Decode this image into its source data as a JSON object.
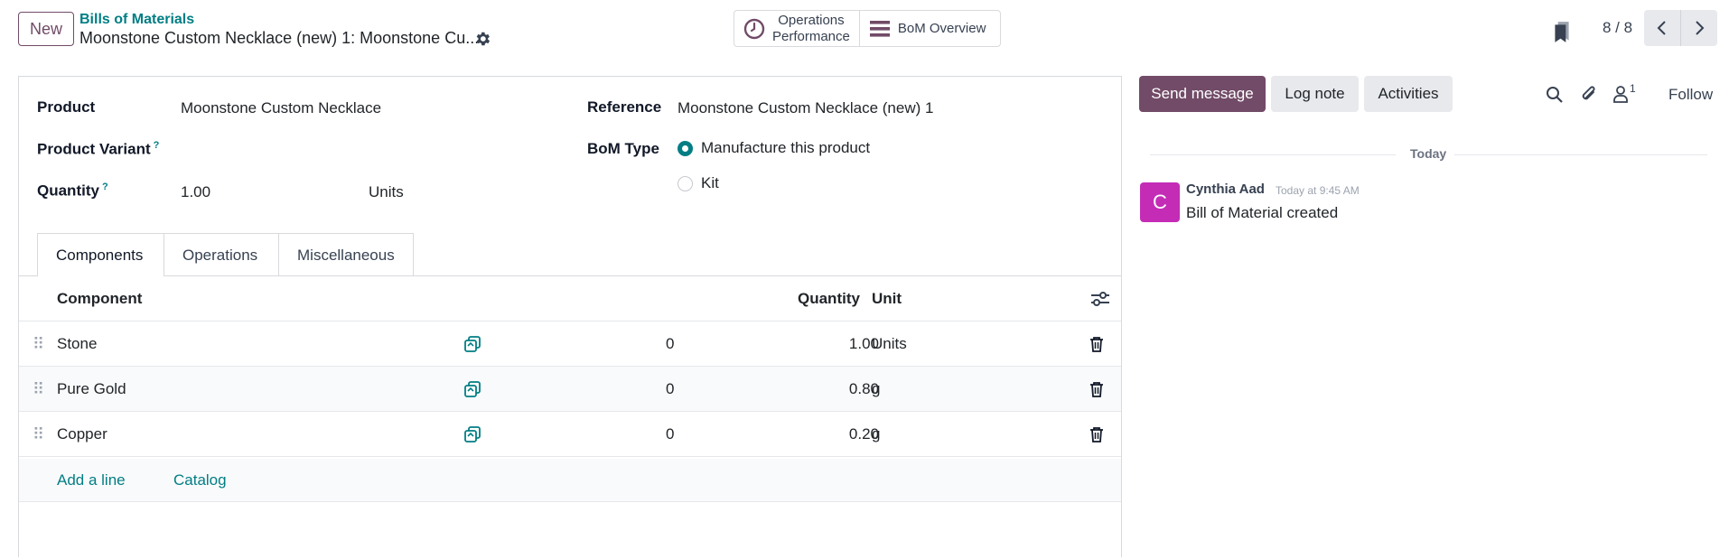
{
  "control_panel": {
    "new_label": "New",
    "breadcrumb_parent": "Bills of Materials",
    "breadcrumb_current": "Moonstone Custom Necklace (new) 1: Moonstone Cu...",
    "stat_operations_line1": "Operations",
    "stat_operations_line2": "Performance",
    "stat_bom_overview": "BoM Overview",
    "pager_text": "8 / 8"
  },
  "form": {
    "product_label": "Product",
    "product_value": "Moonstone Custom Necklace",
    "variant_label": "Product Variant",
    "quantity_label": "Quantity",
    "quantity_value": "1.00",
    "quantity_unit": "Units",
    "help_mark": "?",
    "reference_label": "Reference",
    "reference_value": "Moonstone Custom Necklace (new) 1",
    "bom_type_label": "BoM Type",
    "bom_type_options": [
      "Manufacture this product",
      "Kit"
    ],
    "bom_type_selected": "Manufacture this product"
  },
  "tabs": [
    "Components",
    "Operations",
    "Miscellaneous"
  ],
  "components_table": {
    "headers": {
      "component": "Component",
      "quantity": "Quantity",
      "unit": "Unit"
    },
    "rows": [
      {
        "component": "Stone",
        "count": "0",
        "quantity": "1.00",
        "unit": "Units"
      },
      {
        "component": "Pure Gold",
        "count": "0",
        "quantity": "0.80",
        "unit": "g"
      },
      {
        "component": "Copper",
        "count": "0",
        "quantity": "0.20",
        "unit": "g"
      }
    ],
    "add_line": "Add a line",
    "catalog": "Catalog"
  },
  "chatter": {
    "send_message": "Send message",
    "log_note": "Log note",
    "activities": "Activities",
    "follower_count": "1",
    "follow": "Follow",
    "date_separator": "Today",
    "message": {
      "avatar_letter": "C",
      "author": "Cynthia Aad",
      "time": "Today at 9:45 AM",
      "body": "Bill of Material created"
    }
  },
  "colors": {
    "brand": "#714b67",
    "link": "#017e84",
    "avatar": "#c42cb6"
  },
  "icons": [
    "gear-icon",
    "clock-icon",
    "bars-icon",
    "bookmark-icon",
    "chevron-left-icon",
    "chevron-right-icon",
    "copy-icon",
    "trash-icon",
    "column-settings-icon",
    "search-icon",
    "paperclip-icon",
    "follower-icon",
    "drag-handle-icon"
  ]
}
